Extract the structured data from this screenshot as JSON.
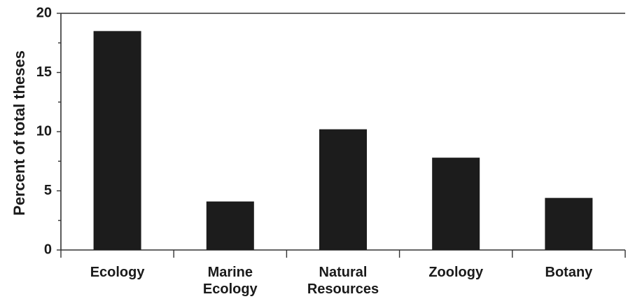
{
  "chart_data": {
    "type": "bar",
    "categories": [
      "Ecology",
      "Marine Ecology",
      "Natural Resources",
      "Zoology",
      "Botany"
    ],
    "category_lines": [
      [
        "Ecology"
      ],
      [
        "Marine",
        "Ecology"
      ],
      [
        "Natural",
        "Resources"
      ],
      [
        "Zoology"
      ],
      [
        "Botany"
      ]
    ],
    "values": [
      18.5,
      4.1,
      10.2,
      7.8,
      4.4
    ],
    "title": "",
    "xlabel": "",
    "ylabel": "Percent of total theses",
    "ylim": [
      0,
      20
    ],
    "yticks": [
      0,
      5,
      10,
      15,
      20
    ],
    "grid": false,
    "bar_color": "#1c1c1c"
  }
}
